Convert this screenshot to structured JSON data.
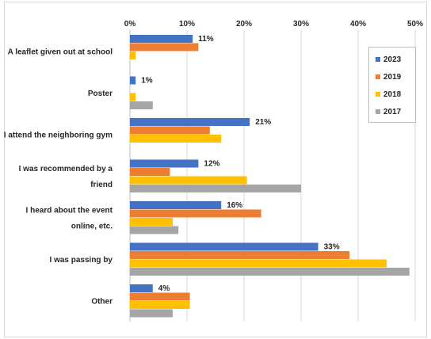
{
  "chart_data": {
    "type": "bar",
    "orientation": "horizontal",
    "categories": [
      [
        "A leaflet given out at school"
      ],
      [
        "Poster"
      ],
      [
        "I attend the neighboring gym"
      ],
      [
        "I was recommended by a",
        "friend"
      ],
      [
        "I heard about the event",
        "online, etc."
      ],
      [
        "I was passing by"
      ],
      [
        "Other"
      ]
    ],
    "series": [
      {
        "name": "2023",
        "color": "#4472c4",
        "values": [
          11,
          1,
          21,
          12,
          16,
          33,
          4
        ],
        "labels": [
          "11%",
          "1%",
          "21%",
          "12%",
          "16%",
          "33%",
          "4%"
        ]
      },
      {
        "name": "2019",
        "color": "#ed7d31",
        "values": [
          12,
          0,
          14,
          7,
          23,
          38.5,
          10.5
        ]
      },
      {
        "name": "2018",
        "color": "#ffc000",
        "values": [
          1,
          1,
          16,
          20.5,
          7.5,
          45,
          10.5
        ]
      },
      {
        "name": "2017",
        "color": "#a5a5a5",
        "values": [
          0,
          4,
          0,
          30,
          8.5,
          49,
          7.5
        ]
      }
    ],
    "x_ticks": [
      "0%",
      "10%",
      "20%",
      "30%",
      "40%",
      "50%"
    ],
    "xlim": [
      0,
      50
    ],
    "grid": true,
    "legend_position": "top-right"
  }
}
